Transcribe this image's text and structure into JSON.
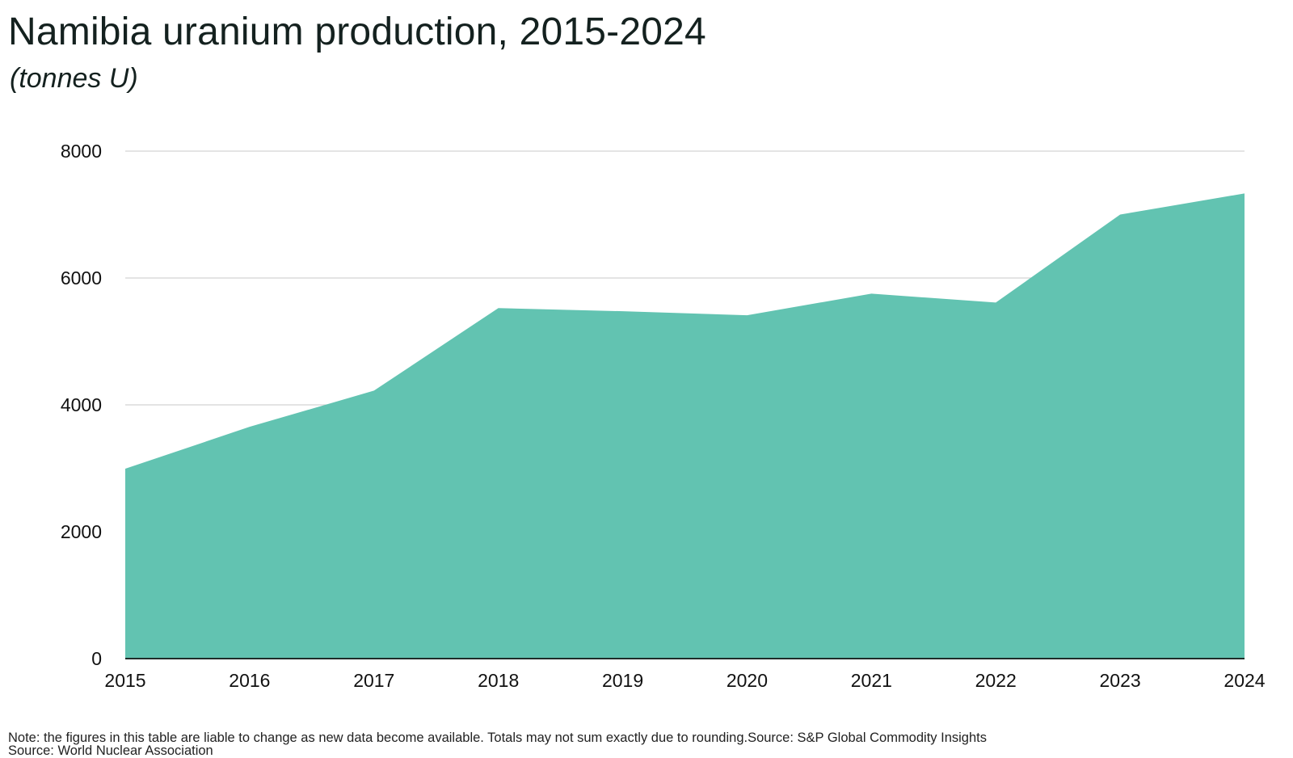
{
  "title": "Namibia uranium production, 2015-2024",
  "subtitle": "(tonnes U)",
  "note": "Note: the figures in this table are liable to change as new data become available. Totals may not sum exactly due to rounding.Source: S&P Global Commodity Insights",
  "source": "Source: World Nuclear Association",
  "colors": {
    "area": "#62c3b1",
    "grid": "#d4d4d4",
    "baseline": "#1f2d2a"
  },
  "chart_data": {
    "type": "area",
    "x": [
      "2015",
      "2016",
      "2017",
      "2018",
      "2019",
      "2020",
      "2021",
      "2022",
      "2023",
      "2024"
    ],
    "series": [
      {
        "values": [
          2993,
          3654,
          4224,
          5525,
          5476,
          5413,
          5753,
          5613,
          7000,
          7333
        ]
      }
    ],
    "ylim": [
      0,
      8000
    ],
    "yticks": [
      "0",
      "2000",
      "4000",
      "6000",
      "8000"
    ],
    "grid": true,
    "legend": false
  }
}
